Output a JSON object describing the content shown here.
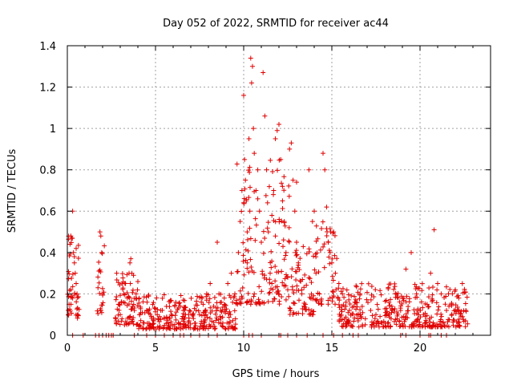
{
  "chart_data": {
    "type": "scatter",
    "title": "Day 052 of 2022, SRMTID for receiver ac44",
    "xlabel": "GPS time / hours",
    "ylabel": "SRMTID / TECUs",
    "xlim": [
      0,
      24
    ],
    "ylim": [
      0,
      1.4
    ],
    "xticks": [
      0,
      5,
      10,
      15,
      20
    ],
    "xtick_labels": [
      "0",
      "5",
      "10",
      "15",
      "20"
    ],
    "yticks": [
      0,
      0.2,
      0.4,
      0.6,
      0.8,
      1.0,
      1.2,
      1.4
    ],
    "ytick_labels": [
      "0",
      "0.2",
      "0.4",
      "0.6",
      "0.8",
      "1",
      "1.2",
      "1.4"
    ],
    "grid": true,
    "marker": "+",
    "color": "#e00000",
    "series": [
      {
        "name": "SRMTID",
        "x": [
          0.05,
          0.1,
          0.15,
          0.2,
          0.25,
          0.3,
          0.35,
          0.4,
          0.45,
          0.5,
          0.55,
          0.6,
          0.2,
          0.3,
          0.4,
          0.5,
          1.85,
          1.9,
          1.95,
          2.0,
          1.9,
          2.8,
          2.9,
          3.0,
          3.1,
          3.2,
          3.3,
          3.4,
          3.5,
          3.55,
          3.6,
          3.7,
          3.8,
          3.9,
          4.0,
          4.1,
          4.3,
          4.5,
          4.7,
          4.9,
          5.1,
          5.3,
          5.5,
          5.7,
          5.9,
          6.1,
          6.3,
          6.5,
          6.7,
          6.9,
          7.1,
          7.3,
          7.5,
          7.7,
          7.9,
          8.1,
          8.3,
          8.5,
          8.6,
          8.7,
          8.9,
          9.1,
          9.3,
          9.5,
          9.7,
          9.8,
          9.9,
          10.0,
          10.05,
          10.1,
          10.15,
          10.2,
          10.3,
          10.35,
          10.4,
          10.45,
          10.5,
          10.55,
          10.6,
          10.7,
          10.8,
          10.9,
          11.0,
          11.1,
          11.2,
          11.3,
          11.4,
          11.5,
          11.6,
          11.7,
          11.8,
          11.9,
          12.0,
          12.1,
          12.2,
          12.3,
          12.4,
          12.5,
          12.6,
          12.7,
          12.8,
          12.9,
          13.0,
          13.1,
          13.3,
          13.5,
          13.7,
          13.9,
          14.1,
          14.3,
          14.4,
          14.5,
          14.6,
          14.7,
          14.8,
          14.9,
          15.0,
          15.1,
          15.2,
          15.4,
          15.6,
          15.8,
          16.0,
          16.3,
          16.6,
          16.9,
          17.2,
          17.5,
          17.8,
          18.1,
          18.4,
          18.7,
          18.9,
          19.0,
          19.2,
          19.5,
          19.8,
          20.0,
          20.2,
          20.4,
          20.6,
          20.8,
          21.0,
          21.2,
          21.5,
          21.8,
          22.0,
          22.2,
          22.4,
          22.6,
          10.4,
          10.6,
          10.2,
          11.8,
          12.5,
          13.0,
          14.0,
          12.2,
          11.6,
          10.8
        ],
        "y": [
          0.1,
          0.15,
          0.44,
          0.48,
          0.47,
          0.6,
          0.4,
          0.35,
          0.3,
          0.25,
          0.2,
          0.1,
          0.22,
          0.18,
          0.38,
          0.42,
          0.5,
          0.48,
          0.4,
          0.2,
          0.12,
          0.3,
          0.15,
          0.1,
          0.08,
          0.2,
          0.25,
          0.18,
          0.3,
          0.35,
          0.37,
          0.14,
          0.12,
          0.2,
          0.26,
          0.1,
          0.06,
          0.12,
          0.05,
          0.07,
          0.1,
          0.12,
          0.08,
          0.06,
          0.1,
          0.14,
          0.06,
          0.08,
          0.05,
          0.07,
          0.1,
          0.12,
          0.1,
          0.15,
          0.2,
          0.25,
          0.14,
          0.45,
          0.2,
          0.12,
          0.18,
          0.25,
          0.3,
          0.2,
          0.4,
          0.55,
          0.7,
          1.16,
          0.85,
          0.75,
          0.65,
          0.5,
          0.95,
          0.6,
          1.34,
          1.22,
          1.3,
          1.0,
          0.88,
          0.7,
          0.8,
          0.6,
          0.45,
          1.27,
          1.06,
          0.8,
          0.5,
          0.3,
          0.25,
          0.7,
          0.95,
          0.99,
          1.02,
          0.85,
          0.65,
          0.55,
          0.4,
          0.28,
          0.9,
          0.93,
          0.75,
          0.6,
          0.45,
          0.35,
          0.2,
          0.15,
          0.8,
          0.55,
          0.3,
          0.2,
          0.15,
          0.88,
          0.8,
          0.62,
          0.45,
          0.4,
          0.35,
          0.5,
          0.3,
          0.25,
          0.2,
          0.14,
          0.12,
          0.16,
          0.1,
          0.08,
          0.12,
          0.1,
          0.06,
          0.1,
          0.14,
          0.08,
          0.12,
          0.05,
          0.32,
          0.4,
          0.2,
          0.12,
          0.1,
          0.15,
          0.3,
          0.51,
          0.25,
          0.2,
          0.12,
          0.15,
          0.22,
          0.18,
          0.25,
          0.12,
          0.15,
          0.2,
          0.35,
          0.48,
          0.22,
          0.74,
          0.6,
          0.72,
          0.58,
          0.66
        ],
        "zero_points_x": [
          0.3,
          0.9,
          1.6,
          1.8,
          2.0,
          2.2,
          2.35,
          2.5,
          2.6,
          3.8,
          4.5,
          5.0,
          5.5,
          6.0,
          6.4,
          6.6,
          7.0,
          7.5,
          8.0,
          8.5,
          10.0,
          10.3,
          10.5,
          11.0,
          12.0,
          12.1,
          12.5,
          13.0,
          13.6,
          14.5,
          15.1,
          15.6,
          16.2,
          16.5,
          18.9,
          19.2,
          20.0,
          20.5,
          20.6,
          21.2,
          21.5
        ]
      }
    ]
  }
}
